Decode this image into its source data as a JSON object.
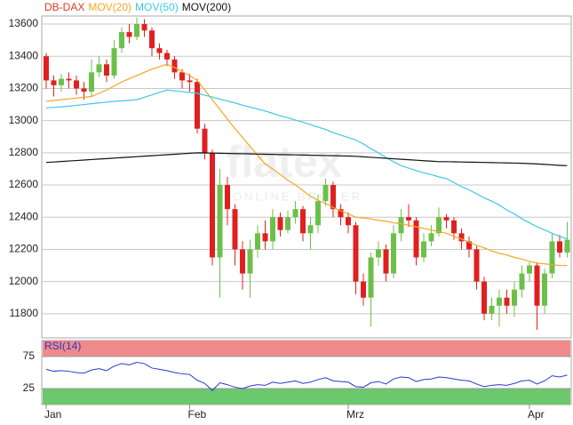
{
  "chart_data": [
    {
      "type": "candlestick",
      "name": "DB-DAX",
      "color": "#e03a2a",
      "up_color": "#6cc04a",
      "down_color": "#e02020",
      "categories": [
        "Jan",
        null,
        null,
        null,
        null,
        null,
        null,
        null,
        null,
        null,
        null,
        null,
        null,
        null,
        null,
        null,
        null,
        null,
        null,
        "Feb",
        null,
        null,
        null,
        null,
        null,
        null,
        null,
        null,
        null,
        null,
        null,
        null,
        null,
        null,
        null,
        null,
        null,
        null,
        null,
        null,
        "Mrz",
        null,
        null,
        null,
        null,
        null,
        null,
        null,
        null,
        null,
        null,
        null,
        null,
        null,
        null,
        null,
        null,
        null,
        null,
        null,
        null,
        null,
        null,
        null,
        "Apr",
        null,
        null,
        null,
        null,
        null
      ],
      "open": [
        13400,
        13250,
        13220,
        13260,
        13250,
        13200,
        13180,
        13300,
        13350,
        13280,
        13450,
        13550,
        13520,
        13600,
        13560,
        13450,
        13420,
        13380,
        13300,
        13250,
        13240,
        12950,
        12800,
        12150,
        12600,
        12450,
        12200,
        12050,
        12200,
        12300,
        12250,
        12400,
        12320,
        12400,
        12450,
        12300,
        12350,
        12500,
        12600,
        12450,
        12400,
        12350,
        12000,
        11900,
        12150,
        12200,
        12050,
        12300,
        12400,
        12380,
        12150,
        12250,
        12300,
        12400,
        12380,
        12300,
        12250,
        12200,
        12000,
        11800,
        11850,
        11900,
        11850,
        11950,
        12050,
        12100,
        11850,
        12050,
        12250,
        12180
      ],
      "high": [
        13420,
        13280,
        13290,
        13300,
        13280,
        13240,
        13380,
        13400,
        13380,
        13500,
        13580,
        13600,
        13640,
        13630,
        13580,
        13480,
        13440,
        13400,
        13320,
        13290,
        13260,
        12980,
        12820,
        12700,
        12650,
        12480,
        12250,
        12260,
        12350,
        12380,
        12450,
        12430,
        12440,
        12500,
        12470,
        12400,
        12540,
        12640,
        12620,
        12480,
        12430,
        12370,
        12050,
        12180,
        12250,
        12230,
        12350,
        12450,
        12480,
        12400,
        12300,
        12350,
        12460,
        12420,
        12400,
        12330,
        12280,
        12220,
        12030,
        11900,
        11950,
        11950,
        12000,
        12100,
        12120,
        12120,
        12080,
        12300,
        12290,
        12370
      ],
      "low": [
        13200,
        13150,
        13180,
        13200,
        13160,
        13130,
        13150,
        13270,
        13240,
        13260,
        13420,
        13480,
        13500,
        13520,
        13400,
        13380,
        13340,
        13260,
        13200,
        13180,
        12920,
        12760,
        12100,
        11900,
        12350,
        12100,
        11950,
        11900,
        12150,
        12200,
        12200,
        12280,
        12300,
        12360,
        12250,
        12200,
        12300,
        12470,
        12400,
        12350,
        12300,
        11920,
        11850,
        11720,
        12100,
        12000,
        12020,
        12250,
        12340,
        12100,
        12120,
        12220,
        12280,
        12330,
        12260,
        12200,
        12150,
        11950,
        11760,
        11760,
        11720,
        11800,
        11780,
        11900,
        12000,
        11700,
        11800,
        12020,
        12150,
        12150
      ],
      "close": [
        13250,
        13220,
        13260,
        13250,
        13200,
        13180,
        13300,
        13350,
        13280,
        13450,
        13550,
        13520,
        13600,
        13560,
        13450,
        13420,
        13380,
        13300,
        13250,
        13240,
        12950,
        12800,
        12150,
        12600,
        12450,
        12200,
        12050,
        12200,
        12300,
        12250,
        12400,
        12320,
        12400,
        12450,
        12300,
        12350,
        12500,
        12600,
        12450,
        12400,
        12350,
        12000,
        11900,
        12150,
        12200,
        12050,
        12300,
        12400,
        12380,
        12150,
        12250,
        12300,
        12400,
        12380,
        12300,
        12250,
        12200,
        12000,
        11800,
        11850,
        11900,
        11850,
        11950,
        12050,
        12100,
        11850,
        12050,
        12250,
        12180,
        12260
      ],
      "lines": [
        {
          "name": "MOV(20)",
          "color": "#f5a623",
          "values": [
            13120,
            13125,
            13130,
            13135,
            13140,
            13145,
            13150,
            13170,
            13190,
            13215,
            13240,
            13260,
            13280,
            13300,
            13320,
            13335,
            13350,
            13330,
            13305,
            13280,
            13250,
            13190,
            13130,
            13070,
            13010,
            12950,
            12895,
            12840,
            12785,
            12730,
            12700,
            12665,
            12630,
            12600,
            12565,
            12530,
            12505,
            12485,
            12460,
            12440,
            12420,
            12400,
            12395,
            12390,
            12380,
            12375,
            12365,
            12360,
            12350,
            12340,
            12330,
            12320,
            12310,
            12300,
            12280,
            12265,
            12245,
            12225,
            12210,
            12190,
            12175,
            12165,
            12150,
            12140,
            12125,
            12115,
            12110,
            12105,
            12100,
            12100
          ]
        },
        {
          "name": "MOV(50)",
          "color": "#3cc8e8",
          "values": [
            13080,
            13082,
            13085,
            13090,
            13095,
            13100,
            13105,
            13110,
            13115,
            13120,
            13123,
            13126,
            13130,
            13145,
            13160,
            13175,
            13190,
            13185,
            13180,
            13175,
            13170,
            13158,
            13146,
            13134,
            13122,
            13110,
            13096,
            13084,
            13072,
            13060,
            13045,
            13030,
            13018,
            13003,
            12990,
            12975,
            12960,
            12945,
            12925,
            12910,
            12895,
            12880,
            12855,
            12825,
            12800,
            12770,
            12745,
            12720,
            12705,
            12690,
            12675,
            12665,
            12650,
            12640,
            12615,
            12590,
            12570,
            12545,
            12520,
            12500,
            12475,
            12445,
            12420,
            12390,
            12365,
            12340,
            12320,
            12300,
            12280,
            12265
          ]
        },
        {
          "name": "MOV(200)",
          "color": "#111111",
          "values": [
            12740,
            12743,
            12746,
            12749,
            12752,
            12755,
            12758,
            12761,
            12764,
            12767,
            12770,
            12773,
            12776,
            12779,
            12782,
            12785,
            12788,
            12791,
            12794,
            12797,
            12800,
            12799,
            12798,
            12797,
            12796,
            12795,
            12794,
            12793,
            12792,
            12791,
            12790,
            12789,
            12788,
            12787,
            12786,
            12785,
            12784,
            12783,
            12782,
            12781,
            12780,
            12778,
            12775,
            12772,
            12769,
            12766,
            12763,
            12760,
            12757,
            12754,
            12751,
            12748,
            12745,
            12745,
            12744,
            12743,
            12742,
            12741,
            12740,
            12739,
            12738,
            12737,
            12736,
            12735,
            12733,
            12731,
            12728,
            12725,
            12722,
            12720
          ]
        }
      ],
      "ylim": [
        11650,
        13650
      ],
      "yticks": [
        11800,
        12000,
        12200,
        12400,
        12600,
        12800,
        13000,
        13200,
        13400,
        13600
      ],
      "grid": true,
      "watermark": "flatex",
      "watermark_sub": "ONLINE BROKER"
    },
    {
      "type": "line",
      "series": [
        {
          "name": "RSI(14)",
          "color": "#2a3acc",
          "values": [
            55,
            52,
            53,
            52,
            50,
            49,
            54,
            56,
            53,
            60,
            64,
            62,
            66,
            64,
            57,
            55,
            53,
            50,
            48,
            47,
            38,
            33,
            22,
            34,
            31,
            27,
            25,
            29,
            31,
            30,
            35,
            33,
            35,
            37,
            33,
            35,
            39,
            42,
            37,
            36,
            35,
            28,
            27,
            34,
            36,
            32,
            40,
            43,
            42,
            36,
            39,
            40,
            43,
            42,
            40,
            38,
            37,
            32,
            28,
            30,
            31,
            30,
            33,
            37,
            38,
            32,
            37,
            45,
            43,
            46
          ]
        }
      ],
      "ylim": [
        0,
        100
      ],
      "yticks": [
        25,
        75
      ],
      "bands": [
        {
          "from": 75,
          "to": 100,
          "color": "#f08a8a"
        },
        {
          "from": 0,
          "to": 25,
          "color": "#6cc86c"
        }
      ]
    }
  ]
}
